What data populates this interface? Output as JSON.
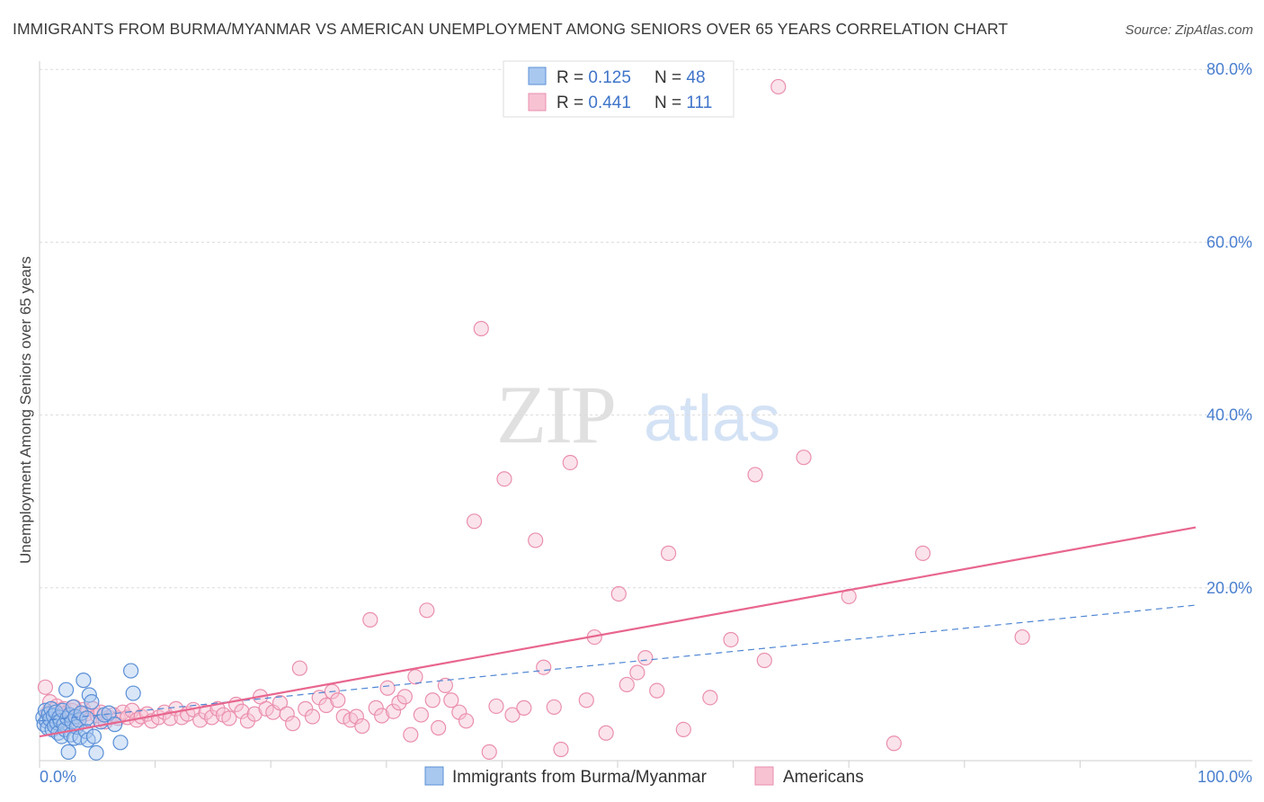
{
  "title": "IMMIGRANTS FROM BURMA/MYANMAR VS AMERICAN UNEMPLOYMENT AMONG SENIORS OVER 65 YEARS CORRELATION CHART",
  "source": "Source: ZipAtlas.com",
  "watermark": {
    "zip": "ZIP",
    "atlas": "atlas"
  },
  "colors": {
    "blue_fill": "#a9c8f0",
    "blue_stroke": "#5b8fd6",
    "blue_line": "#4f86d4",
    "pink_fill": "#f7c2d2",
    "pink_stroke": "#ea8fae",
    "pink_line": "#e8668e",
    "tick_text": "#4a7fcf",
    "grid": "#dcdcdc"
  },
  "legend": {
    "rows": [
      {
        "r_label": "R = ",
        "r_value": "0.125",
        "n_label": "N = ",
        "n_value": "48"
      },
      {
        "r_label": "R = ",
        "r_value": "0.441",
        "n_label": "N = ",
        "n_value": "111"
      }
    ]
  },
  "chart_data": {
    "type": "scatter",
    "title": "IMMIGRANTS FROM BURMA/MYANMAR VS AMERICAN UNEMPLOYMENT AMONG SENIORS OVER 65 YEARS CORRELATION CHART",
    "xlabel": "",
    "ylabel": "Unemployment Among Seniors over 65 years",
    "xlim": [
      0,
      100
    ],
    "ylim": [
      0,
      82
    ],
    "x_tick_labels": [
      "0.0%",
      "100.0%"
    ],
    "y_ticks": [
      20,
      40,
      60,
      80
    ],
    "y_tick_labels": [
      "20.0%",
      "40.0%",
      "60.0%",
      "80.0%"
    ],
    "grid": true,
    "legend_position": "bottom",
    "series": [
      {
        "name": "Immigrants from Burma/Myanmar",
        "r": 0.125,
        "n": 48,
        "trend": {
          "x": [
            0,
            100
          ],
          "y": [
            4.6,
            18.0
          ],
          "style": "dashed"
        },
        "points": [
          [
            0.3,
            5.0
          ],
          [
            0.4,
            4.2
          ],
          [
            0.5,
            5.8
          ],
          [
            0.6,
            4.6
          ],
          [
            0.7,
            3.8
          ],
          [
            0.8,
            5.4
          ],
          [
            0.9,
            4.8
          ],
          [
            1.0,
            6.0
          ],
          [
            1.1,
            3.6
          ],
          [
            1.2,
            5.2
          ],
          [
            1.3,
            4.0
          ],
          [
            1.4,
            5.6
          ],
          [
            1.5,
            4.4
          ],
          [
            1.6,
            3.2
          ],
          [
            1.7,
            5.0
          ],
          [
            1.8,
            4.6
          ],
          [
            1.9,
            2.8
          ],
          [
            2.0,
            5.8
          ],
          [
            2.1,
            4.2
          ],
          [
            2.2,
            3.6
          ],
          [
            2.3,
            8.2
          ],
          [
            2.4,
            4.9
          ],
          [
            2.5,
            1.0
          ],
          [
            2.6,
            5.3
          ],
          [
            2.7,
            3.0
          ],
          [
            2.8,
            4.5
          ],
          [
            2.9,
            6.2
          ],
          [
            3.0,
            2.6
          ],
          [
            3.1,
            5.1
          ],
          [
            3.2,
            3.9
          ],
          [
            3.4,
            4.7
          ],
          [
            3.5,
            2.7
          ],
          [
            3.6,
            5.5
          ],
          [
            3.8,
            9.3
          ],
          [
            4.0,
            3.4
          ],
          [
            4.1,
            4.9
          ],
          [
            4.2,
            2.4
          ],
          [
            4.3,
            7.6
          ],
          [
            4.5,
            6.8
          ],
          [
            4.7,
            2.8
          ],
          [
            4.9,
            0.9
          ],
          [
            5.3,
            4.5
          ],
          [
            5.6,
            5.3
          ],
          [
            6.0,
            5.5
          ],
          [
            6.5,
            4.2
          ],
          [
            7.0,
            2.1
          ],
          [
            7.9,
            10.4
          ],
          [
            8.1,
            7.8
          ]
        ]
      },
      {
        "name": "Americans",
        "r": 0.441,
        "n": 111,
        "trend": {
          "x": [
            0,
            100
          ],
          "y": [
            2.8,
            27.0
          ],
          "style": "solid"
        },
        "points": [
          [
            0.5,
            8.5
          ],
          [
            0.7,
            5.5
          ],
          [
            0.9,
            6.8
          ],
          [
            1.1,
            4.5
          ],
          [
            1.3,
            5.9
          ],
          [
            1.5,
            6.3
          ],
          [
            1.7,
            4.8
          ],
          [
            1.9,
            5.2
          ],
          [
            2.1,
            6.0
          ],
          [
            2.3,
            5.5
          ],
          [
            2.5,
            4.6
          ],
          [
            2.8,
            5.8
          ],
          [
            3.0,
            6.2
          ],
          [
            3.2,
            5.0
          ],
          [
            3.5,
            4.9
          ],
          [
            3.8,
            5.9
          ],
          [
            4.0,
            5.4
          ],
          [
            4.3,
            4.7
          ],
          [
            4.6,
            6.0
          ],
          [
            5.0,
            5.2
          ],
          [
            5.3,
            5.6
          ],
          [
            5.7,
            4.5
          ],
          [
            6.0,
            5.0
          ],
          [
            6.4,
            5.3
          ],
          [
            6.8,
            4.9
          ],
          [
            7.2,
            5.6
          ],
          [
            7.6,
            5.0
          ],
          [
            8.0,
            5.8
          ],
          [
            8.4,
            4.7
          ],
          [
            8.8,
            5.1
          ],
          [
            9.3,
            5.4
          ],
          [
            9.7,
            4.6
          ],
          [
            10.3,
            5.0
          ],
          [
            10.8,
            5.6
          ],
          [
            11.3,
            4.9
          ],
          [
            11.8,
            6.0
          ],
          [
            12.3,
            5.0
          ],
          [
            12.8,
            5.4
          ],
          [
            13.3,
            5.9
          ],
          [
            13.9,
            4.7
          ],
          [
            14.4,
            5.6
          ],
          [
            14.9,
            5.0
          ],
          [
            15.4,
            6.0
          ],
          [
            15.9,
            5.3
          ],
          [
            16.4,
            4.9
          ],
          [
            17.0,
            6.5
          ],
          [
            17.5,
            5.7
          ],
          [
            18.0,
            4.6
          ],
          [
            18.6,
            5.4
          ],
          [
            19.1,
            7.4
          ],
          [
            19.6,
            6.0
          ],
          [
            20.2,
            5.6
          ],
          [
            20.8,
            6.7
          ],
          [
            21.4,
            5.4
          ],
          [
            21.9,
            4.3
          ],
          [
            22.5,
            10.7
          ],
          [
            23.0,
            6.0
          ],
          [
            23.6,
            5.1
          ],
          [
            24.2,
            7.3
          ],
          [
            24.8,
            6.4
          ],
          [
            25.3,
            8.0
          ],
          [
            25.8,
            7.0
          ],
          [
            26.3,
            5.1
          ],
          [
            26.9,
            4.7
          ],
          [
            27.4,
            5.1
          ],
          [
            27.9,
            4.0
          ],
          [
            28.6,
            16.3
          ],
          [
            29.1,
            6.1
          ],
          [
            29.6,
            5.2
          ],
          [
            30.1,
            8.4
          ],
          [
            30.6,
            5.7
          ],
          [
            31.1,
            6.7
          ],
          [
            31.6,
            7.4
          ],
          [
            32.1,
            3.0
          ],
          [
            32.5,
            9.7
          ],
          [
            33.0,
            5.3
          ],
          [
            33.5,
            17.4
          ],
          [
            34.0,
            7.0
          ],
          [
            34.5,
            3.8
          ],
          [
            35.1,
            8.7
          ],
          [
            35.6,
            7.0
          ],
          [
            36.3,
            5.6
          ],
          [
            36.9,
            4.6
          ],
          [
            37.6,
            27.7
          ],
          [
            38.2,
            50.0
          ],
          [
            38.9,
            1.0
          ],
          [
            39.5,
            6.3
          ],
          [
            40.2,
            32.6
          ],
          [
            40.9,
            5.3
          ],
          [
            41.9,
            6.1
          ],
          [
            42.9,
            25.5
          ],
          [
            43.6,
            10.8
          ],
          [
            44.5,
            6.2
          ],
          [
            45.1,
            1.3
          ],
          [
            45.9,
            34.5
          ],
          [
            47.3,
            7.0
          ],
          [
            48.0,
            14.3
          ],
          [
            49.0,
            3.2
          ],
          [
            50.1,
            19.3
          ],
          [
            50.8,
            8.8
          ],
          [
            51.7,
            10.2
          ],
          [
            52.4,
            11.9
          ],
          [
            53.4,
            8.1
          ],
          [
            54.4,
            24.0
          ],
          [
            55.7,
            3.6
          ],
          [
            58.0,
            7.3
          ],
          [
            59.8,
            14.0
          ],
          [
            61.9,
            33.1
          ],
          [
            62.7,
            11.6
          ],
          [
            63.9,
            78.0
          ],
          [
            66.1,
            35.1
          ],
          [
            70.0,
            19.0
          ],
          [
            73.9,
            2.0
          ],
          [
            76.4,
            24.0
          ],
          [
            85.0,
            14.3
          ]
        ]
      }
    ]
  }
}
